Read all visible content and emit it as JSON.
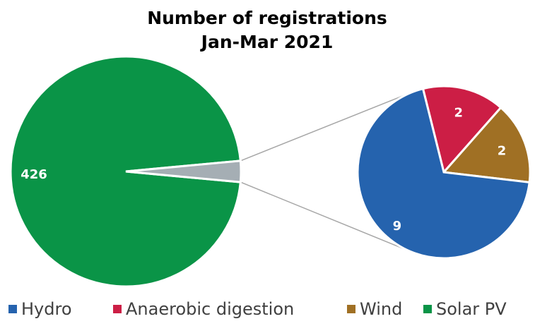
{
  "chart_data": {
    "type": "pie",
    "subtype": "pie-of-pie",
    "title": [
      "Number of registrations",
      "Jan-Mar 2021"
    ],
    "series": [
      {
        "name": "Solar PV",
        "value": 426,
        "color": "#0A9447"
      },
      {
        "name": "Hydro",
        "value": 9,
        "color": "#2563AE"
      },
      {
        "name": "Anaerobic digestion",
        "value": 2,
        "color": "#CC1E45"
      },
      {
        "name": "Wind",
        "value": 2,
        "color": "#A07024"
      }
    ],
    "main_pie": [
      {
        "label": "Solar PV",
        "value": 426,
        "color": "#0A9447",
        "data_label": "426"
      },
      {
        "label": "Other",
        "value": 13,
        "color": "#A5AEB4",
        "data_label": ""
      }
    ],
    "secondary_pie": [
      {
        "label": "Hydro",
        "value": 9,
        "color": "#2563AE",
        "data_label": "9"
      },
      {
        "label": "Anaerobic digestion",
        "value": 2,
        "color": "#CC1E45",
        "data_label": "2"
      },
      {
        "label": "Wind",
        "value": 2,
        "color": "#A07024",
        "data_label": "2"
      }
    ],
    "legend": [
      "Hydro",
      "Anaerobic digestion",
      "Wind",
      "Solar PV"
    ],
    "legend_position": "bottom"
  }
}
